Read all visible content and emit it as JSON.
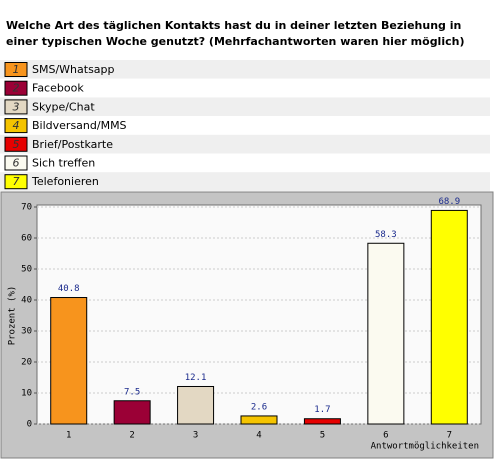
{
  "chart_data": {
    "type": "bar",
    "title": "Welche Art des täglichen Kontakts hast du in deiner letzten Beziehung in einer typischen Woche genutzt? (Mehrfachantworten waren hier möglich)",
    "categories": [
      "1",
      "2",
      "3",
      "4",
      "5",
      "6",
      "7"
    ],
    "answers": [
      "SMS/Whatsapp",
      "Facebook",
      "Skype/Chat",
      "Bildversand/MMS",
      "Brief/Postkarte",
      "Sich treffen",
      "Telefonieren"
    ],
    "values": [
      40.8,
      7.5,
      12.1,
      2.6,
      1.7,
      58.3,
      68.9
    ],
    "colors": [
      "#f7941d",
      "#9b0036",
      "#e3d8c3",
      "#f5c400",
      "#e60000",
      "#fbfaf0",
      "#ffff00"
    ],
    "ylabel": "Prozent (%)",
    "xlabel": "Antwortmöglichkeiten",
    "ylim": [
      0,
      70
    ],
    "yticks": [
      0,
      10,
      20,
      30,
      40,
      50,
      60,
      70
    ],
    "grid": true
  }
}
